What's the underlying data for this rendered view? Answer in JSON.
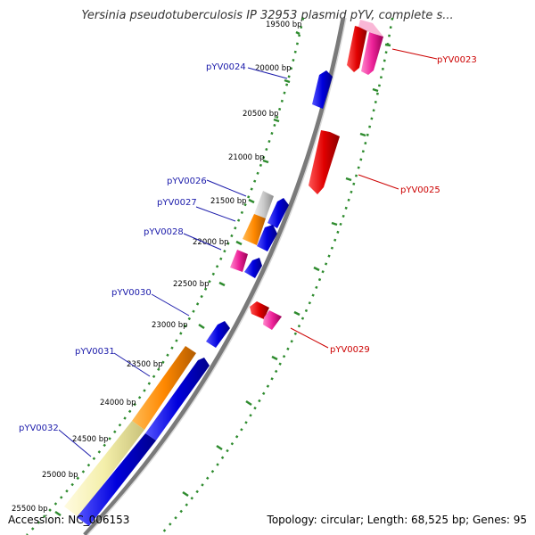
{
  "title": "Yersinia pseudotuberculosis IP 32953 plasmid pYV, complete s...",
  "footer": {
    "accession": "Accession: NC_006153",
    "summary": "Topology: circular; Length: 68,525 bp; Genes: 95"
  },
  "ruler": {
    "ticks": [
      "19500 bp",
      "20000 bp",
      "20500 bp",
      "21000 bp",
      "21500 bp",
      "22000 bp",
      "22500 bp",
      "23000 bp",
      "23500 bp",
      "24000 bp",
      "24500 bp",
      "25000 bp",
      "25500 bp"
    ]
  },
  "labels": [
    {
      "text": "pYV0023",
      "color": "#cc0000"
    },
    {
      "text": "pYV0024",
      "color": "#1a1aaa"
    },
    {
      "text": "pYV0025",
      "color": "#cc0000"
    },
    {
      "text": "pYV0026",
      "color": "#1a1aaa"
    },
    {
      "text": "pYV0027",
      "color": "#1a1aaa"
    },
    {
      "text": "pYV0028",
      "color": "#1a1aaa"
    },
    {
      "text": "pYV0029",
      "color": "#cc0000"
    },
    {
      "text": "pYV0030",
      "color": "#1a1aaa"
    },
    {
      "text": "pYV0031",
      "color": "#1a1aaa"
    },
    {
      "text": "pYV0032",
      "color": "#1a1aaa"
    }
  ],
  "colors": {
    "forward_red": "#e00000",
    "forward_pink": "#ee2299",
    "reverse_blue": "#0000dd",
    "orange": "#ff8800",
    "pale_yellow": "#f4efaa",
    "gray": "#c8c8c8",
    "backbone": "#7a7a7a",
    "tick_green": "#2e8b2e"
  }
}
